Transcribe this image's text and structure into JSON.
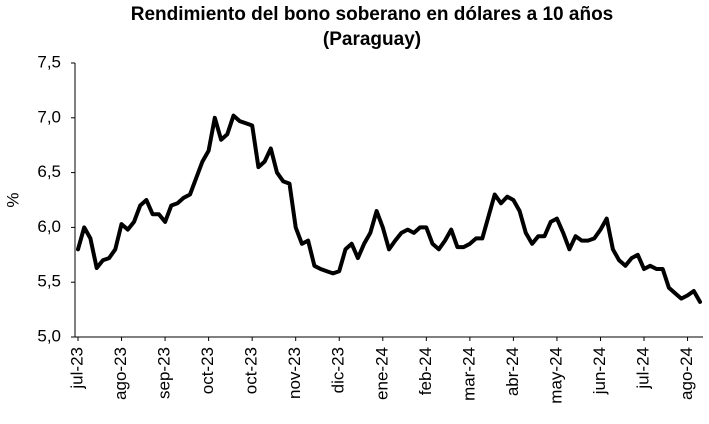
{
  "chart_data": {
    "type": "line",
    "title_lines": [
      "Rendimiento del bono soberano en dólares a 10 años",
      "(Paraguay)"
    ],
    "y_label": "%",
    "categories": [
      "jul-23",
      null,
      null,
      null,
      null,
      null,
      null,
      "ago-23",
      null,
      null,
      null,
      null,
      null,
      null,
      "sep-23",
      null,
      null,
      null,
      null,
      null,
      null,
      "oct-23",
      null,
      null,
      null,
      null,
      null,
      null,
      "oct-23",
      null,
      null,
      null,
      null,
      null,
      null,
      "nov-23",
      null,
      null,
      null,
      null,
      null,
      null,
      "dic-23",
      null,
      null,
      null,
      null,
      null,
      null,
      "ene-24",
      null,
      null,
      null,
      null,
      null,
      null,
      "feb-24",
      null,
      null,
      null,
      null,
      null,
      null,
      "mar-24",
      null,
      null,
      null,
      null,
      null,
      null,
      "abr-24",
      null,
      null,
      null,
      null,
      null,
      null,
      "may-24",
      null,
      null,
      null,
      null,
      null,
      null,
      "jun-24",
      null,
      null,
      null,
      null,
      null,
      null,
      "jul-24",
      null,
      null,
      null,
      null,
      null,
      null,
      "ago-24",
      null,
      null
    ],
    "values": [
      5.8,
      6.0,
      5.9,
      5.63,
      5.7,
      5.72,
      5.8,
      6.03,
      5.98,
      6.05,
      6.2,
      6.25,
      6.12,
      6.12,
      6.05,
      6.2,
      6.22,
      6.27,
      6.3,
      6.45,
      6.6,
      6.7,
      7.0,
      6.8,
      6.85,
      7.02,
      6.97,
      6.95,
      6.93,
      6.55,
      6.6,
      6.72,
      6.5,
      6.42,
      6.4,
      6.0,
      5.85,
      5.88,
      5.65,
      5.62,
      5.6,
      5.58,
      5.6,
      5.8,
      5.85,
      5.72,
      5.85,
      5.95,
      6.15,
      6.0,
      5.8,
      5.88,
      5.95,
      5.98,
      5.95,
      6.0,
      6.0,
      5.85,
      5.8,
      5.88,
      5.98,
      5.82,
      5.82,
      5.85,
      5.9,
      5.9,
      6.1,
      6.3,
      6.22,
      6.28,
      6.25,
      6.15,
      5.95,
      5.85,
      5.92,
      5.92,
      6.05,
      6.08,
      5.95,
      5.8,
      5.92,
      5.88,
      5.88,
      5.9,
      5.98,
      6.08,
      5.8,
      5.7,
      5.65,
      5.72,
      5.75,
      5.62,
      5.65,
      5.62,
      5.62,
      5.45,
      5.4,
      5.35,
      5.38,
      5.42,
      5.32
    ],
    "color": "#000000",
    "ylim": [
      5.0,
      7.5
    ],
    "yticks": [
      {
        "value": 5.0,
        "label": "5,0"
      },
      {
        "value": 5.5,
        "label": "5,5"
      },
      {
        "value": 6.0,
        "label": "6,0"
      },
      {
        "value": 6.5,
        "label": "6,5"
      },
      {
        "value": 7.0,
        "label": "7,0"
      },
      {
        "value": 7.5,
        "label": "7,5"
      }
    ],
    "grid": false
  }
}
